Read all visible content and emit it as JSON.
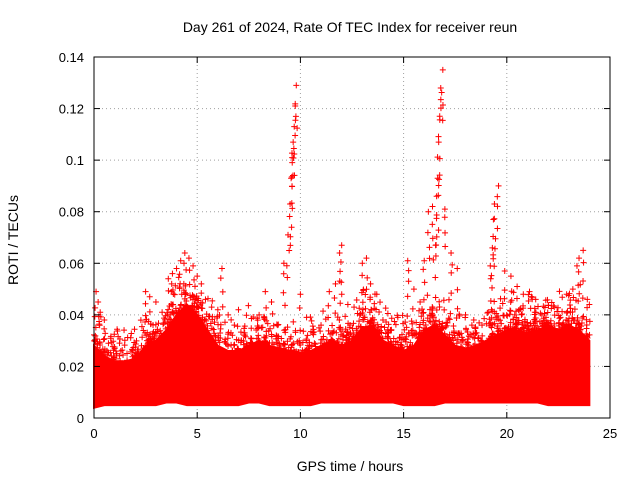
{
  "chart_data": {
    "type": "scatter",
    "title": "Day 261 of 2024, Rate Of TEC Index for receiver reun",
    "xlabel": "GPS time / hours",
    "ylabel": "ROTI / TECUs",
    "xlim": [
      0,
      25
    ],
    "ylim": [
      0,
      0.14
    ],
    "xticks": [
      0,
      5,
      10,
      15,
      20,
      25
    ],
    "xtick_labels": [
      "0",
      "5",
      "10",
      "15",
      "20",
      "25"
    ],
    "yticks": [
      0,
      0.02,
      0.04,
      0.06,
      0.08,
      0.1,
      0.12,
      0.14
    ],
    "ytick_labels": [
      "0",
      "0.02",
      "0.04",
      "0.06",
      "0.08",
      "0.1",
      "0.12",
      "0.14"
    ],
    "grid": true,
    "marker": "+",
    "color": "#ff0000",
    "series": [
      {
        "name": "ROTI",
        "x": [
          0.1,
          0.2,
          0.3,
          0.5,
          0.7,
          1.0,
          1.3,
          1.6,
          2.0,
          2.3,
          2.5,
          2.7,
          3.0,
          3.3,
          3.6,
          3.8,
          4.0,
          4.2,
          4.4,
          4.6,
          4.8,
          5.0,
          5.2,
          5.4,
          5.7,
          6.0,
          6.2,
          6.5,
          6.8,
          7.0,
          7.3,
          7.6,
          8.0,
          8.3,
          8.6,
          8.9,
          9.2,
          9.4,
          9.5,
          9.55,
          9.6,
          9.65,
          9.7,
          9.75,
          9.8,
          10.0,
          10.3,
          10.6,
          11.0,
          11.4,
          11.7,
          11.9,
          12.0,
          12.3,
          12.6,
          13.0,
          13.2,
          13.4,
          13.7,
          14.0,
          14.4,
          14.8,
          15.2,
          15.5,
          15.8,
          16.0,
          16.2,
          16.4,
          16.55,
          16.6,
          16.65,
          16.7,
          16.75,
          16.8,
          16.9,
          17.0,
          17.3,
          17.6,
          18.0,
          18.4,
          18.8,
          19.1,
          19.2,
          19.3,
          19.35,
          19.4,
          19.6,
          19.9,
          20.2,
          20.5,
          20.8,
          21.1,
          21.4,
          21.7,
          22.0,
          22.3,
          22.6,
          22.9,
          23.2,
          23.4,
          23.5,
          23.7,
          23.9,
          24.0
        ],
        "y": [
          0.049,
          0.045,
          0.041,
          0.038,
          0.029,
          0.027,
          0.026,
          0.025,
          0.022,
          0.028,
          0.049,
          0.047,
          0.045,
          0.041,
          0.054,
          0.056,
          0.058,
          0.061,
          0.064,
          0.062,
          0.059,
          0.055,
          0.052,
          0.046,
          0.043,
          0.042,
          0.058,
          0.04,
          0.036,
          0.042,
          0.033,
          0.031,
          0.04,
          0.049,
          0.045,
          0.036,
          0.06,
          0.071,
          0.083,
          0.093,
          0.101,
          0.107,
          0.113,
          0.121,
          0.129,
          0.048,
          0.039,
          0.033,
          0.036,
          0.049,
          0.052,
          0.064,
          0.067,
          0.044,
          0.043,
          0.06,
          0.062,
          0.052,
          0.048,
          0.038,
          0.034,
          0.031,
          0.061,
          0.05,
          0.045,
          0.061,
          0.08,
          0.082,
          0.067,
          0.086,
          0.093,
          0.107,
          0.117,
          0.128,
          0.135,
          0.081,
          0.064,
          0.058,
          0.04,
          0.038,
          0.036,
          0.041,
          0.059,
          0.066,
          0.077,
          0.083,
          0.09,
          0.057,
          0.055,
          0.051,
          0.048,
          0.049,
          0.046,
          0.04,
          0.037,
          0.043,
          0.039,
          0.048,
          0.05,
          0.059,
          0.062,
          0.065,
          0.046,
          0.044
        ]
      }
    ],
    "band": {
      "x": [
        0.0,
        0.5,
        1.0,
        1.5,
        2.0,
        2.5,
        3.0,
        3.5,
        4.0,
        4.5,
        5.0,
        5.5,
        6.0,
        6.5,
        7.0,
        7.5,
        8.0,
        8.5,
        9.0,
        9.5,
        10.0,
        10.5,
        11.0,
        11.5,
        12.0,
        12.5,
        13.0,
        13.5,
        14.0,
        14.5,
        15.0,
        15.5,
        16.0,
        16.5,
        17.0,
        17.5,
        18.0,
        18.5,
        19.0,
        19.5,
        20.0,
        20.5,
        21.0,
        21.5,
        22.0,
        22.5,
        23.0,
        23.5,
        24.0
      ],
      "low": [
        0.004,
        0.005,
        0.005,
        0.005,
        0.005,
        0.005,
        0.005,
        0.006,
        0.006,
        0.005,
        0.005,
        0.005,
        0.005,
        0.005,
        0.005,
        0.006,
        0.006,
        0.005,
        0.005,
        0.005,
        0.005,
        0.005,
        0.006,
        0.006,
        0.006,
        0.006,
        0.006,
        0.006,
        0.006,
        0.006,
        0.005,
        0.005,
        0.005,
        0.005,
        0.006,
        0.006,
        0.006,
        0.006,
        0.006,
        0.006,
        0.006,
        0.006,
        0.006,
        0.006,
        0.005,
        0.005,
        0.005,
        0.005,
        0.005
      ],
      "high": [
        0.028,
        0.024,
        0.022,
        0.022,
        0.023,
        0.028,
        0.03,
        0.034,
        0.04,
        0.044,
        0.04,
        0.034,
        0.028,
        0.026,
        0.026,
        0.028,
        0.03,
        0.028,
        0.027,
        0.026,
        0.025,
        0.026,
        0.028,
        0.03,
        0.028,
        0.03,
        0.035,
        0.036,
        0.03,
        0.028,
        0.026,
        0.028,
        0.034,
        0.036,
        0.032,
        0.028,
        0.027,
        0.028,
        0.03,
        0.032,
        0.034,
        0.034,
        0.033,
        0.034,
        0.036,
        0.034,
        0.036,
        0.034,
        0.03
      ]
    }
  }
}
